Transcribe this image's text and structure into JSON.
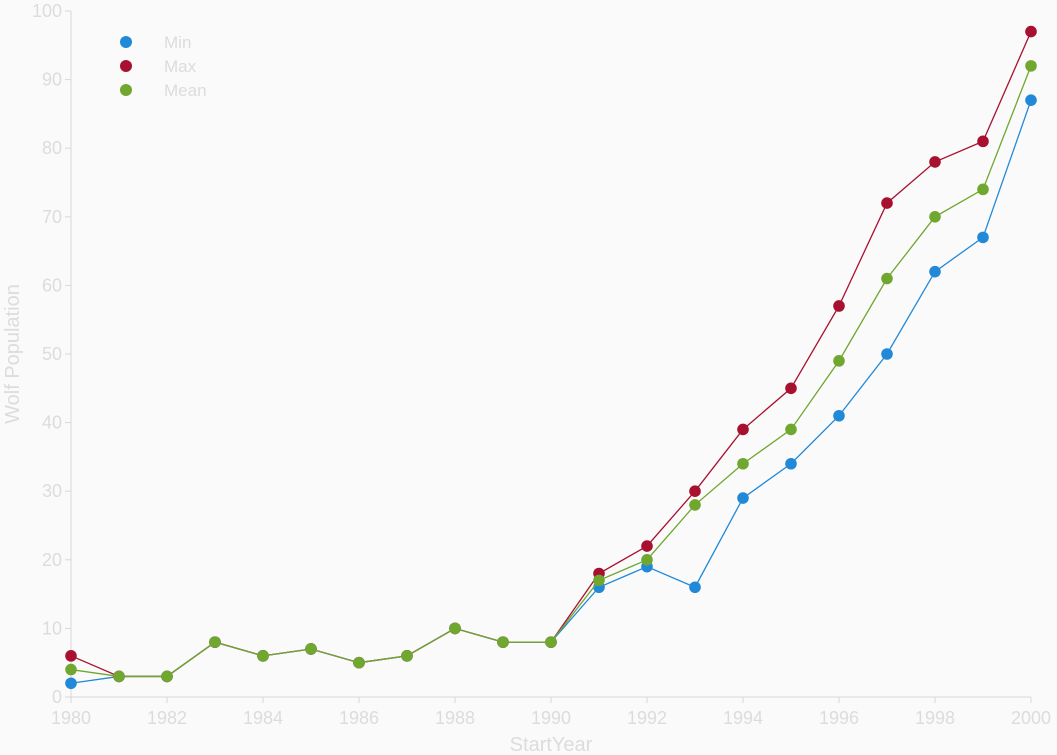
{
  "chart_data": {
    "type": "line",
    "xlabel": "StartYear",
    "ylabel": "Wolf Population",
    "xlim": [
      1980,
      2000
    ],
    "ylim": [
      0,
      100
    ],
    "x_ticks": [
      1980,
      1982,
      1984,
      1986,
      1988,
      1990,
      1992,
      1994,
      1996,
      1998,
      2000
    ],
    "y_ticks": [
      0,
      10,
      20,
      30,
      40,
      50,
      60,
      70,
      80,
      90,
      100
    ],
    "grid": false,
    "legend_position": "top-left",
    "x": [
      1980,
      1981,
      1982,
      1983,
      1984,
      1985,
      1986,
      1987,
      1988,
      1989,
      1990,
      1991,
      1992,
      1993,
      1994,
      1995,
      1996,
      1997,
      1998,
      1999,
      2000
    ],
    "series": [
      {
        "name": "Min",
        "color": "#2189d8",
        "values": [
          2,
          3,
          3,
          8,
          6,
          7,
          5,
          6,
          10,
          8,
          8,
          16,
          19,
          16,
          29,
          34,
          41,
          50,
          62,
          67,
          87
        ]
      },
      {
        "name": "Max",
        "color": "#a8102f",
        "values": [
          6,
          3,
          3,
          8,
          6,
          7,
          5,
          6,
          10,
          8,
          8,
          18,
          22,
          30,
          39,
          45,
          57,
          72,
          78,
          81,
          97
        ]
      },
      {
        "name": "Mean",
        "color": "#6fa72f",
        "values": [
          4,
          3,
          3,
          8,
          6,
          7,
          5,
          6,
          10,
          8,
          8,
          17,
          20,
          28,
          34,
          39,
          49,
          61,
          70,
          74,
          92
        ]
      }
    ]
  }
}
